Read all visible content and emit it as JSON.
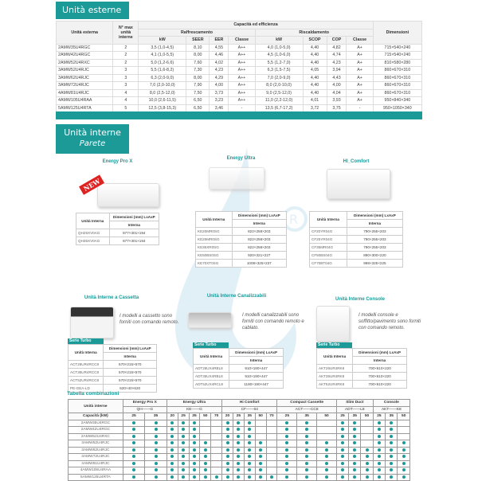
{
  "accent_color": "#1b9a98",
  "external": {
    "title": "Unità esterne",
    "headers": {
      "unit": "Unità esterna",
      "max_units": "N° max unità interne",
      "capacity": "Capacità ed efficienza",
      "cooling": "Raffrescamento",
      "heating": "Riscaldamento",
      "dimensions": "Dimensioni",
      "cool_cols": [
        "kW",
        "SEER",
        "EER",
        "Classe"
      ],
      "heat_cols": [
        "kW",
        "SCOP",
        "COP",
        "Classe"
      ]
    },
    "rows": [
      [
        "2AMW35U4RGC",
        "2",
        "3,5 (1,0-4,5)",
        "8,10",
        "4,55",
        "A++",
        "4,0 (1,0-5,0)",
        "4,40",
        "4,82",
        "A+",
        "715×540×240"
      ],
      [
        "2AMW42U4RGC",
        "2",
        "4,1 (1,0-5,5)",
        "8,00",
        "4,46",
        "A++",
        "4,5 (1,0-6,0)",
        "4,40",
        "4,74",
        "A+",
        "715×540×240"
      ],
      [
        "2AMW52U4RXC",
        "2",
        "5,0 (1,2-6,6)",
        "7,60",
        "4,02",
        "A++",
        "5,5 (1,2-7,0)",
        "4,40",
        "4,23",
        "A+",
        "810×580×280"
      ],
      [
        "3AMW52U4RJC",
        "3",
        "5,5 (1,6-8,2)",
        "7,30",
        "4,23",
        "A++",
        "6,3 (1,5-7,5)",
        "4,05",
        "3,94",
        "A+",
        "860×670×310"
      ],
      [
        "3AMW62U4RJC",
        "3",
        "6,3 (2,0-9,0)",
        "8,00",
        "4,29",
        "A++",
        "7,0 (2,0-9,0)",
        "4,40",
        "4,43",
        "A+",
        "860×670×310"
      ],
      [
        "3AMW72U4RJC",
        "3",
        "7,0 (2,0-10,0)",
        "7,90",
        "4,00",
        "A++",
        "8,0 (2,0-10,0)",
        "4,40",
        "4,00",
        "A+",
        "860×670×310"
      ],
      [
        "4AMW81U4RJC",
        "4",
        "8,0 (2,5-12,0)",
        "7,50",
        "3,73",
        "A++",
        "9,0 (2,5-12,0)",
        "4,40",
        "4,04",
        "A+",
        "860×670×310"
      ],
      [
        "4AMW105U4RAA",
        "4",
        "10,0 (2,6-11,5)",
        "6,50",
        "3,23",
        "A++",
        "11,0 (2,2-12,0)",
        "4,01",
        "3,93",
        "A+",
        "950×840×340"
      ],
      [
        "5AMW125U4RTA",
        "5",
        "12,5 (3,8-15,3)",
        "6,50",
        "3,46",
        "-",
        "13,5 (6,7-17,2)",
        "3,72",
        "3,75",
        "-",
        "950×1050×340"
      ]
    ]
  },
  "internal": {
    "title": "Unità interne",
    "subtitle": "Parete",
    "table_headers": {
      "unit": "Unità Interna",
      "dims": "Dimensioni (mm) LxAxP",
      "sub": "Interna"
    },
    "new_badge": "NEW",
    "wall": [
      {
        "name": "Energy Pro X",
        "rows": [
          [
            "QH25XV0AG",
            "877×301×194"
          ],
          [
            "QH35XV0AG",
            "877×301×194"
          ]
        ]
      },
      {
        "name": "Energy Ultra",
        "rows": [
          [
            "KE20MR0SG",
            "822×258×203"
          ],
          [
            "KE25MR0SG",
            "822×258×203"
          ],
          [
            "KE35XR0SG",
            "822×258×203"
          ],
          [
            "KE50BS0SG",
            "920×321×227"
          ],
          [
            "KE70XT0SG",
            "1008×325×237"
          ]
        ]
      },
      {
        "name": "HI_Comfort",
        "rows": [
          [
            "CF20YR04G",
            "790×255×203"
          ],
          [
            "CF25YR04G",
            "790×255×203"
          ],
          [
            "CF35MR04G",
            "790×255×203"
          ],
          [
            "CF50BS04G",
            "890×300×220"
          ],
          [
            "CF70BT04G",
            "998×325×225"
          ]
        ]
      }
    ],
    "others": [
      {
        "name": "Unità Interne a Cassetta",
        "note": "I modelli a cassetto sono forniti con comando remoto.",
        "serie": "Serie Turbo",
        "rows": [
          [
            "ACT26UR4RCC8",
            "570×215×570"
          ],
          [
            "ACT35UR4RCC8",
            "570×215×570"
          ],
          [
            "ACT52UR4RCC8",
            "570×215×570"
          ],
          [
            "PE-GEA-LD",
            "620×40×620"
          ]
        ]
      },
      {
        "name": "Unità Interne Canalizzabili",
        "note": "I modelli canalizzabili sono forniti con comando remoto e cablato.",
        "serie": "Serie Turbo",
        "rows": [
          [
            "ADT26UX4RBL8",
            "910×190×447"
          ],
          [
            "ADT35UX4RBL8",
            "910×190×447"
          ],
          [
            "ADT52UX4RCL8",
            "1180×190×447"
          ]
        ]
      },
      {
        "name": "Unità Interne Console",
        "note": "I modelli console e soffitto/pavimento sono forniti con comando remoto.",
        "serie": "Serie Turbo",
        "rows": [
          [
            "AKT26UR4RK8",
            "700×610×220"
          ],
          [
            "AKT35UR4RK8",
            "700×610×220"
          ],
          [
            "AKT52UR4RK8",
            "700×610×220"
          ]
        ]
      }
    ]
  },
  "combinations": {
    "title": "Tabella combinazioni",
    "unit_header": "Unità interne",
    "capacity_header": "Capacità (kW)",
    "groups": [
      {
        "name": "Energy Pro X",
        "code": "QH——G",
        "caps": [
          "25",
          "35"
        ]
      },
      {
        "name": "Energy Ultra",
        "code": "KE——G",
        "caps": [
          "20",
          "25",
          "35",
          "50",
          "70"
        ]
      },
      {
        "name": "Hi Comfort",
        "code": "CF——04",
        "caps": [
          "20",
          "25",
          "35",
          "50",
          "70"
        ]
      },
      {
        "name": "Compact Cassette",
        "code": "ACT——CC8",
        "caps": [
          "25",
          "35",
          "50"
        ]
      },
      {
        "name": "Slim Duct",
        "code": "ADT——L8",
        "caps": [
          "25",
          "35",
          "50"
        ]
      },
      {
        "name": "Console",
        "code": "AKT——K8",
        "caps": [
          "25",
          "35",
          "50"
        ]
      }
    ],
    "rows": [
      {
        "unit": "2AMW35U4RGC",
        "m": [
          1,
          1,
          1,
          1,
          1,
          0,
          0,
          1,
          1,
          1,
          0,
          0,
          1,
          1,
          0,
          1,
          1,
          0,
          1,
          1,
          0
        ]
      },
      {
        "unit": "2AMW42U4RGC",
        "m": [
          1,
          1,
          1,
          1,
          1,
          0,
          0,
          1,
          1,
          1,
          0,
          0,
          1,
          1,
          0,
          1,
          1,
          0,
          1,
          1,
          0
        ]
      },
      {
        "unit": "2AMW52U4RXC",
        "m": [
          1,
          1,
          1,
          1,
          1,
          0,
          0,
          1,
          1,
          1,
          0,
          0,
          1,
          1,
          0,
          1,
          1,
          0,
          1,
          1,
          0
        ]
      },
      {
        "unit": "3AMW52U4RJC",
        "m": [
          1,
          1,
          1,
          1,
          1,
          1,
          0,
          1,
          1,
          1,
          1,
          0,
          1,
          1,
          1,
          1,
          1,
          0,
          1,
          1,
          1
        ]
      },
      {
        "unit": "3AMW62U4RJC",
        "m": [
          1,
          1,
          1,
          1,
          1,
          1,
          0,
          1,
          1,
          1,
          1,
          0,
          1,
          1,
          1,
          1,
          1,
          1,
          1,
          1,
          1
        ]
      },
      {
        "unit": "3AMW72U4RJC",
        "m": [
          1,
          1,
          1,
          1,
          1,
          1,
          0,
          1,
          1,
          1,
          1,
          0,
          1,
          1,
          1,
          1,
          1,
          1,
          1,
          1,
          1
        ]
      },
      {
        "unit": "4AMW81U4RJC",
        "m": [
          1,
          1,
          1,
          1,
          1,
          1,
          0,
          1,
          1,
          1,
          1,
          0,
          1,
          1,
          1,
          1,
          1,
          1,
          1,
          1,
          1
        ]
      },
      {
        "unit": "4AMW105U4RAA",
        "m": [
          1,
          1,
          1,
          1,
          1,
          1,
          0,
          1,
          1,
          1,
          1,
          0,
          1,
          1,
          1,
          1,
          1,
          1,
          1,
          1,
          1
        ]
      },
      {
        "unit": "5AMW125U4RTA",
        "m": [
          1,
          1,
          1,
          1,
          1,
          1,
          1,
          1,
          1,
          1,
          1,
          1,
          1,
          1,
          1,
          1,
          1,
          1,
          1,
          1,
          1
        ]
      }
    ]
  }
}
